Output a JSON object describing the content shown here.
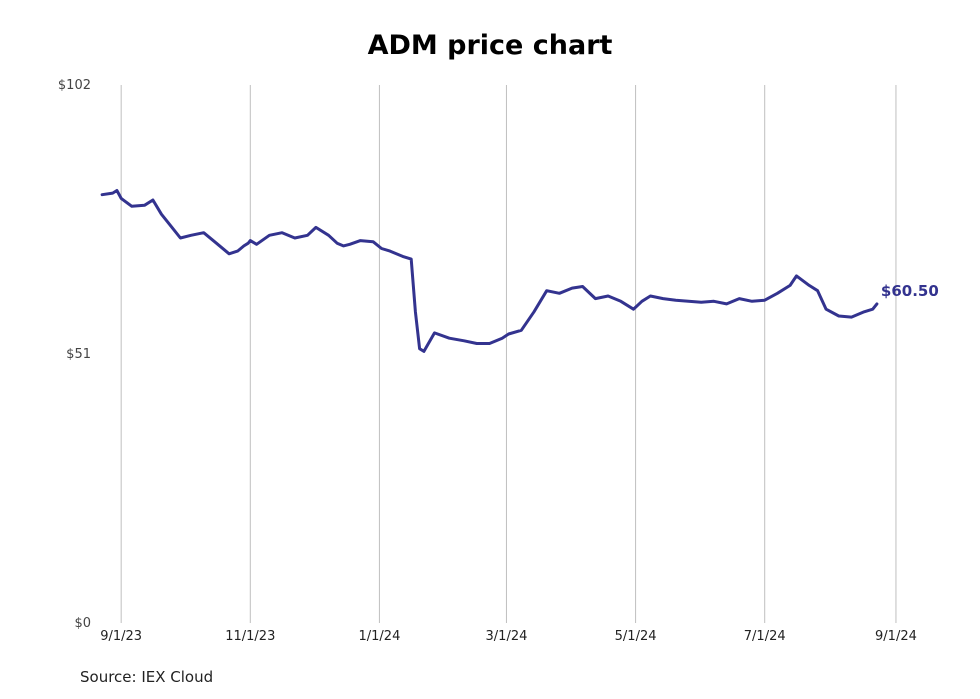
{
  "chart_data": {
    "type": "line",
    "title": "ADM price chart",
    "source": "Source: IEX Cloud",
    "y_ticks": [
      {
        "value": 102,
        "label": "$102"
      },
      {
        "value": 51,
        "label": "$51"
      },
      {
        "value": 0,
        "label": "$0"
      }
    ],
    "x_ticks": [
      {
        "date": "2023-09-01",
        "label": "9/1/23"
      },
      {
        "date": "2023-11-01",
        "label": "11/1/23"
      },
      {
        "date": "2024-01-01",
        "label": "1/1/24"
      },
      {
        "date": "2024-03-01",
        "label": "3/1/24"
      },
      {
        "date": "2024-05-01",
        "label": "5/1/24"
      },
      {
        "date": "2024-07-01",
        "label": "7/1/24"
      },
      {
        "date": "2024-09-01",
        "label": "9/1/24"
      }
    ],
    "ylim": [
      0,
      102
    ],
    "xlim": [
      "2023-08-22",
      "2024-09-10"
    ],
    "grid": "vertical",
    "colors": {
      "line": "#33338f",
      "grid": "#bfbfbf"
    },
    "end_label": "$60.50",
    "series": [
      {
        "x": [
          "2023-08-23",
          "2023-08-28",
          "2023-08-30",
          "2023-09-01",
          "2023-09-06",
          "2023-09-12",
          "2023-09-16",
          "2023-09-20",
          "2023-09-24",
          "2023-09-29",
          "2023-10-04",
          "2023-10-10",
          "2023-10-16",
          "2023-10-22",
          "2023-10-26",
          "2023-10-29",
          "2023-10-31",
          "2023-11-01",
          "2023-11-04",
          "2023-11-10",
          "2023-11-16",
          "2023-11-22",
          "2023-11-28",
          "2023-12-02",
          "2023-12-08",
          "2023-12-12",
          "2023-12-15",
          "2023-12-18",
          "2023-12-23",
          "2023-12-29",
          "2024-01-02",
          "2024-01-06",
          "2024-01-12",
          "2024-01-16",
          "2024-01-18",
          "2024-01-20",
          "2024-01-22",
          "2024-01-27",
          "2024-02-03",
          "2024-02-10",
          "2024-02-16",
          "2024-02-22",
          "2024-02-28",
          "2024-03-02",
          "2024-03-08",
          "2024-03-14",
          "2024-03-20",
          "2024-03-26",
          "2024-04-01",
          "2024-04-06",
          "2024-04-12",
          "2024-04-18",
          "2024-04-24",
          "2024-04-30",
          "2024-05-04",
          "2024-05-08",
          "2024-05-14",
          "2024-05-20",
          "2024-05-26",
          "2024-06-01",
          "2024-06-07",
          "2024-06-13",
          "2024-06-19",
          "2024-06-25",
          "2024-07-01",
          "2024-07-07",
          "2024-07-13",
          "2024-07-16",
          "2024-07-22",
          "2024-07-26",
          "2024-07-30",
          "2024-08-05",
          "2024-08-11",
          "2024-08-17",
          "2024-08-21",
          "2024-08-23"
        ],
        "y": [
          81.2,
          81.5,
          82.0,
          80.5,
          79.0,
          79.2,
          80.2,
          77.5,
          75.5,
          73.0,
          73.5,
          74.0,
          72.0,
          70.0,
          70.5,
          71.5,
          72.0,
          72.5,
          71.8,
          73.5,
          74.0,
          73.0,
          73.5,
          75.0,
          73.5,
          72.0,
          71.5,
          71.8,
          72.5,
          72.3,
          71.0,
          70.5,
          69.5,
          69.0,
          59.0,
          52.0,
          51.5,
          55.0,
          54.0,
          53.5,
          53.0,
          53.0,
          54.0,
          54.8,
          55.5,
          59.0,
          63.0,
          62.5,
          63.5,
          63.8,
          61.5,
          62.0,
          61.0,
          59.5,
          61.0,
          62.0,
          61.5,
          61.2,
          61.0,
          60.8,
          61.0,
          60.5,
          61.5,
          61.0,
          61.2,
          62.5,
          64.0,
          65.8,
          64.0,
          63.0,
          59.5,
          58.2,
          58.0,
          59.0,
          59.5,
          60.5
        ]
      }
    ]
  }
}
